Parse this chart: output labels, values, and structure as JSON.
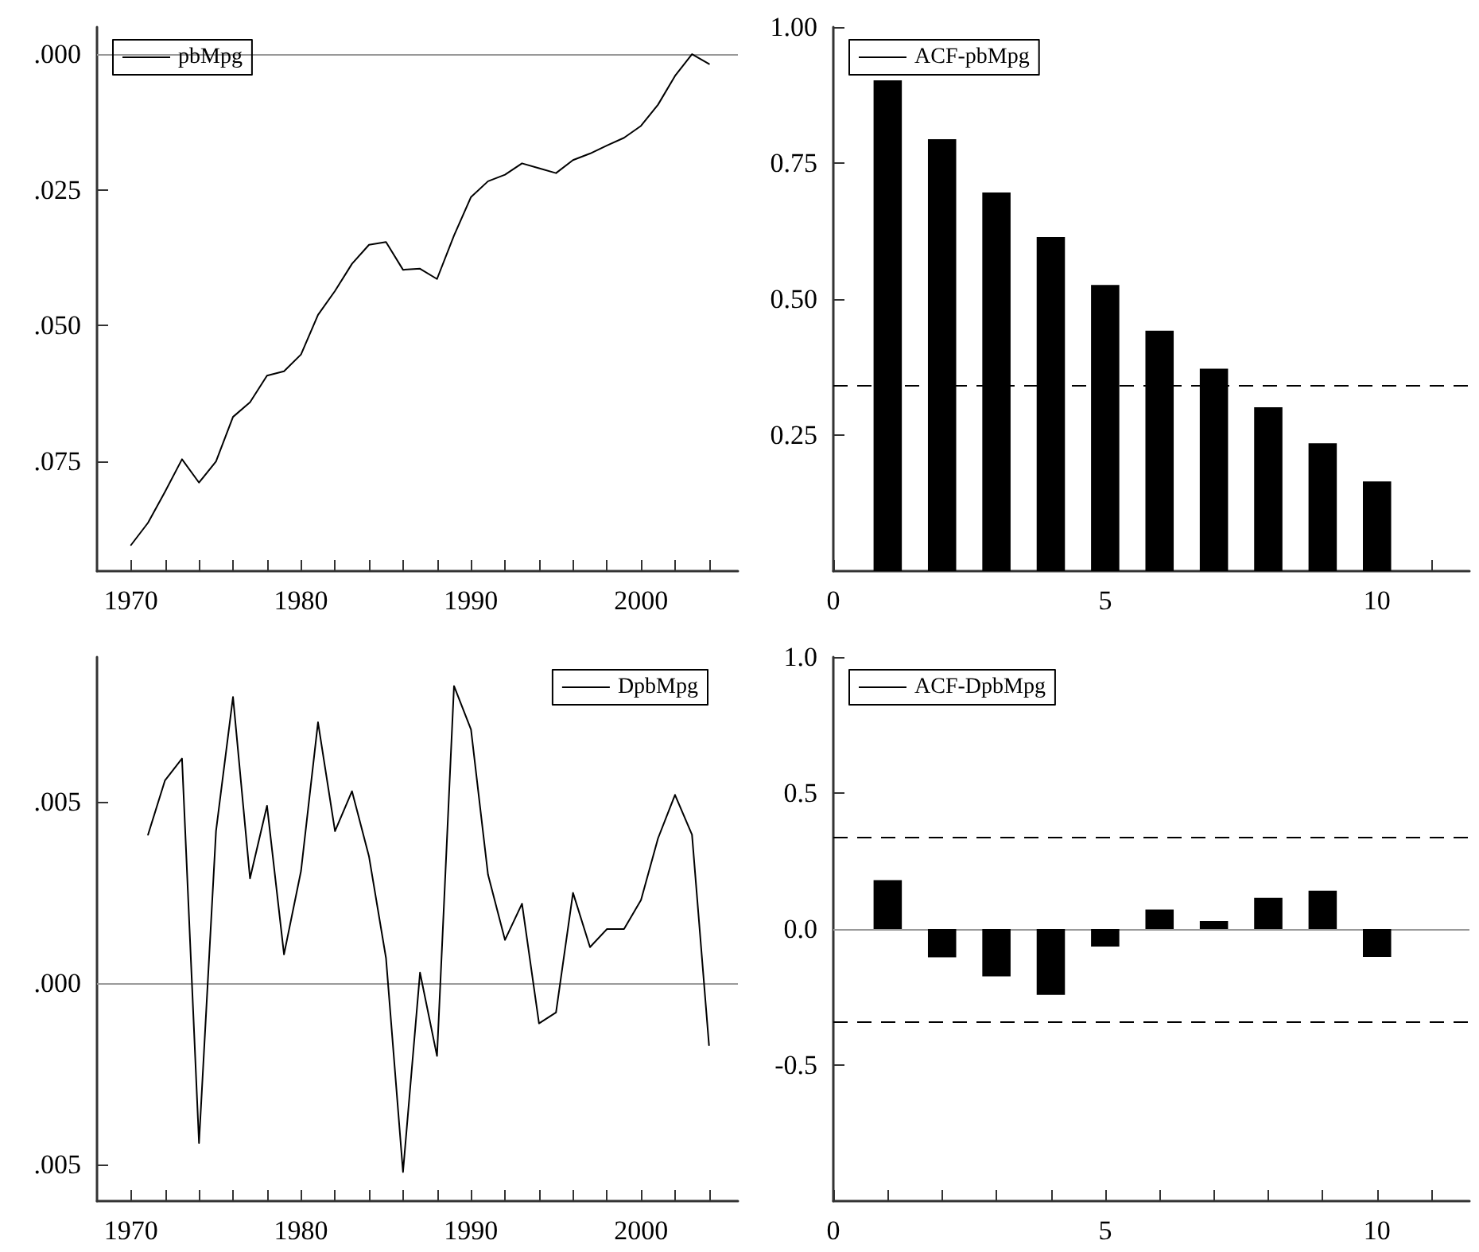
{
  "chart_data": [
    {
      "type": "line",
      "x": [
        1970,
        1971,
        1972,
        1973,
        1974,
        1975,
        1976,
        1977,
        1978,
        1979,
        1980,
        1981,
        1982,
        1983,
        1984,
        1985,
        1986,
        1987,
        1988,
        1989,
        1990,
        1991,
        1992,
        1993,
        1994,
        1995,
        1996,
        1997,
        1998,
        1999,
        2000,
        2001,
        2002,
        2003,
        2004
      ],
      "series": [
        {
          "name": "pbMpg",
          "color": "#000000",
          "values": [
            -0.0904,
            -0.0863,
            -0.0806,
            -0.0746,
            -0.0789,
            -0.075,
            -0.0668,
            -0.0641,
            -0.0592,
            -0.0584,
            -0.0553,
            -0.048,
            -0.0436,
            -0.0386,
            -0.0351,
            -0.0346,
            -0.0397,
            -0.0395,
            -0.0414,
            -0.0334,
            -0.0263,
            -0.0234,
            -0.0222,
            -0.0201,
            -0.021,
            -0.0219,
            -0.0195,
            -0.0183,
            -0.0168,
            -0.0154,
            -0.0132,
            -0.0093,
            -0.004,
            0.0,
            -0.0018
          ]
        }
      ],
      "xlim": [
        1968,
        2005.7
      ],
      "xticks": [
        1970,
        {
          "value": 1972,
          "label": null
        },
        {
          "value": 1974,
          "label": null
        },
        {
          "value": 1976,
          "label": null
        },
        {
          "value": 1978,
          "label": null
        },
        1980,
        {
          "value": 1982,
          "label": null
        },
        {
          "value": 1984,
          "label": null
        },
        {
          "value": 1986,
          "label": null
        },
        {
          "value": 1988,
          "label": null
        },
        1990,
        {
          "value": 1992,
          "label": null
        },
        {
          "value": 1994,
          "label": null
        },
        {
          "value": 1996,
          "label": null
        },
        {
          "value": 1998,
          "label": null
        },
        2000,
        {
          "value": 2002,
          "label": null
        },
        {
          "value": 2004,
          "label": null
        }
      ],
      "ylim": [
        -0.0952,
        0.005
      ],
      "yticks": [
        {
          "value": 0,
          "label": ".000"
        },
        {
          "value": -0.025,
          "label": ".025"
        },
        {
          "value": -0.05,
          "label": ".050"
        },
        {
          "value": -0.075,
          "label": ".075"
        }
      ],
      "legend": "top left",
      "ref_lines": [
        {
          "axis": "y",
          "value": 0,
          "color": "#999999"
        }
      ]
    },
    {
      "type": "bar",
      "x": [
        1,
        2,
        3,
        4,
        5,
        6,
        7,
        8,
        9,
        10
      ],
      "series": [
        {
          "name": "ACF-pbMpg",
          "color": "#000000",
          "values": [
            0.902,
            0.794,
            0.696,
            0.614,
            0.526,
            0.442,
            0.372,
            0.301,
            0.235,
            0.165
          ]
        }
      ],
      "xlim": [
        0,
        11.7
      ],
      "xticks": [
        0,
        {
          "value": 1,
          "label": null
        },
        {
          "value": 2,
          "label": null
        },
        {
          "value": 3,
          "label": null
        },
        {
          "value": 4,
          "label": null
        },
        5,
        {
          "value": 6,
          "label": null
        },
        {
          "value": 7,
          "label": null
        },
        {
          "value": 8,
          "label": null
        },
        {
          "value": 9,
          "label": null
        },
        10,
        {
          "value": 11,
          "label": null
        }
      ],
      "ylim": [
        0,
        1
      ],
      "yticks": [
        0.25,
        {
          "value": 0.5,
          "label": "0.50"
        },
        0.75,
        {
          "value": 1,
          "label": "1.00"
        }
      ],
      "legend": "top left",
      "ref_lines": [
        {
          "axis": "y",
          "value": 0.34,
          "color": "#000000",
          "line_style": "dashed"
        }
      ]
    },
    {
      "type": "line",
      "x": [
        1971,
        1972,
        1973,
        1974,
        1975,
        1976,
        1977,
        1978,
        1979,
        1980,
        1981,
        1982,
        1983,
        1984,
        1985,
        1986,
        1987,
        1988,
        1989,
        1990,
        1991,
        1992,
        1993,
        1994,
        1995,
        1996,
        1997,
        1998,
        1999,
        2000,
        2001,
        2002,
        2003,
        2004
      ],
      "series": [
        {
          "name": "DpbMpg",
          "color": "#000000",
          "values": [
            0.0041,
            0.0056,
            0.0062,
            -0.0044,
            0.0042,
            0.0079,
            0.0029,
            0.0049,
            0.0008,
            0.0031,
            0.0072,
            0.0042,
            0.0053,
            0.0035,
            0.0007,
            -0.0052,
            0.0003,
            -0.002,
            0.0082,
            0.007,
            0.003,
            0.0012,
            0.0022,
            -0.0011,
            -0.0008,
            0.0025,
            0.001,
            0.0015,
            0.0015,
            0.0023,
            0.004,
            0.0052,
            0.0041,
            -0.0017
          ]
        }
      ],
      "xlim": [
        1968,
        2005.7
      ],
      "xticks": [
        1970,
        {
          "value": 1972,
          "label": null
        },
        {
          "value": 1974,
          "label": null
        },
        {
          "value": 1976,
          "label": null
        },
        {
          "value": 1978,
          "label": null
        },
        1980,
        {
          "value": 1982,
          "label": null
        },
        {
          "value": 1984,
          "label": null
        },
        {
          "value": 1986,
          "label": null
        },
        {
          "value": 1988,
          "label": null
        },
        1990,
        {
          "value": 1992,
          "label": null
        },
        {
          "value": 1994,
          "label": null
        },
        {
          "value": 1996,
          "label": null
        },
        {
          "value": 1998,
          "label": null
        },
        2000,
        {
          "value": 2002,
          "label": null
        },
        {
          "value": 2004,
          "label": null
        }
      ],
      "ylim": [
        -0.006,
        0.009
      ],
      "yticks": [
        {
          "value": 0.005,
          "label": ".005"
        },
        {
          "value": 0,
          "label": ".000"
        },
        {
          "value": -0.005,
          "label": ".005"
        }
      ],
      "legend": "top right",
      "ref_lines": [
        {
          "axis": "y",
          "value": 0,
          "color": "#999999"
        }
      ]
    },
    {
      "type": "bar",
      "x": [
        1,
        2,
        3,
        4,
        5,
        6,
        7,
        8,
        9,
        10
      ],
      "series": [
        {
          "name": "ACF-DpbMpg",
          "color": "#000000",
          "values": [
            0.18,
            -0.104,
            -0.174,
            -0.242,
            -0.064,
            0.072,
            0.029,
            0.115,
            0.141,
            -0.102
          ]
        }
      ],
      "xlim": [
        0,
        11.7
      ],
      "xticks": [
        0,
        {
          "value": 1,
          "label": null
        },
        {
          "value": 2,
          "label": null
        },
        {
          "value": 3,
          "label": null
        },
        {
          "value": 4,
          "label": null
        },
        5,
        {
          "value": 6,
          "label": null
        },
        {
          "value": 7,
          "label": null
        },
        {
          "value": 8,
          "label": null
        },
        {
          "value": 9,
          "label": null
        },
        10,
        {
          "value": 11,
          "label": null
        }
      ],
      "ylim": [
        -1,
        1
      ],
      "yticks": [
        {
          "value": 1,
          "label": "1.0"
        },
        0.5,
        {
          "value": 0,
          "label": "0.0"
        },
        -0.5
      ],
      "legend": "top left",
      "ref_lines": [
        {
          "axis": "y",
          "value": 0,
          "color": "#999999"
        },
        {
          "axis": "y",
          "value": 0.344,
          "color": "#000000",
          "line_style": "dashed"
        },
        {
          "axis": "y",
          "value": -0.344,
          "color": "#000000",
          "line_style": "dashed"
        }
      ]
    }
  ]
}
